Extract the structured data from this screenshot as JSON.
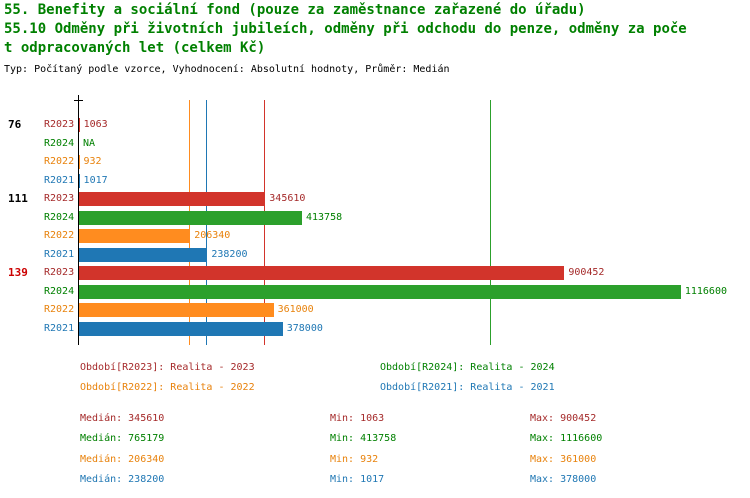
{
  "title": {
    "line1": "55. Benefity a sociální fond (pouze za zaměstnance zařazené do úřadu)",
    "line2": "55.10 Odměny při životních jubileích, odměny při odchodu do penze, odměny za poče",
    "line3": "t odpracovaných let (celkem Kč)",
    "meta": "Typ: Počítaný podle vzorce, Vyhodnocení: Absolutní hodnoty, Průměr: Medián"
  },
  "colors": {
    "title": "#008000",
    "R2023": {
      "bar": "#d2342b",
      "text": "#a52a2a"
    },
    "R2024": {
      "bar": "#2ca02c",
      "text": "#008000"
    },
    "R2022": {
      "bar": "#ff8c1f",
      "text": "#e8820c"
    },
    "R2021": {
      "bar": "#1f77b4",
      "text": "#1f77b4"
    }
  },
  "chart_data": {
    "type": "bar",
    "orientation": "horizontal",
    "value_unit": "Kč",
    "xlim": [
      0,
      1135000
    ],
    "grid": false,
    "series_order": [
      "R2023",
      "R2024",
      "R2022",
      "R2021"
    ],
    "groups": [
      {
        "label": "76",
        "label_color": "#000000",
        "values": {
          "R2023": 1063,
          "R2024": null,
          "R2022": 932,
          "R2021": 1017
        },
        "display": {
          "R2023": "1063",
          "R2024": "NA",
          "R2022": "932",
          "R2021": "1017"
        }
      },
      {
        "label": "111",
        "label_color": "#000000",
        "values": {
          "R2023": 345610,
          "R2024": 413758,
          "R2022": 206340,
          "R2021": 238200
        },
        "display": {
          "R2023": "345610",
          "R2024": "413758",
          "R2022": "206340",
          "R2021": "238200"
        }
      },
      {
        "label": "139",
        "label_color": "#cc0000",
        "values": {
          "R2023": 900452,
          "R2024": 1116600,
          "R2022": 361000,
          "R2021": 378000
        },
        "display": {
          "R2023": "900452",
          "R2024": "1116600",
          "R2022": "361000",
          "R2021": "378000"
        }
      }
    ],
    "median_lines": {
      "R2023": 345610,
      "R2024": 765179,
      "R2022": 206340,
      "R2021": 238200
    }
  },
  "legend": [
    {
      "year": "R2023",
      "label": "Období[R2023]: Realita - 2023"
    },
    {
      "year": "R2024",
      "label": "Období[R2024]: Realita - 2024"
    },
    {
      "year": "R2022",
      "label": "Období[R2022]: Realita - 2022"
    },
    {
      "year": "R2021",
      "label": "Období[R2021]: Realita - 2021"
    }
  ],
  "stats": [
    {
      "year": "R2023",
      "median": "Medián: 345610",
      "min": "Min: 1063",
      "max": "Max: 900452"
    },
    {
      "year": "R2024",
      "median": "Medián: 765179",
      "min": "Min: 413758",
      "max": "Max: 1116600"
    },
    {
      "year": "R2022",
      "median": "Medián: 206340",
      "min": "Min: 932",
      "max": "Max: 361000"
    },
    {
      "year": "R2021",
      "median": "Medián: 238200",
      "min": "Min: 1017",
      "max": "Max: 378000"
    }
  ]
}
